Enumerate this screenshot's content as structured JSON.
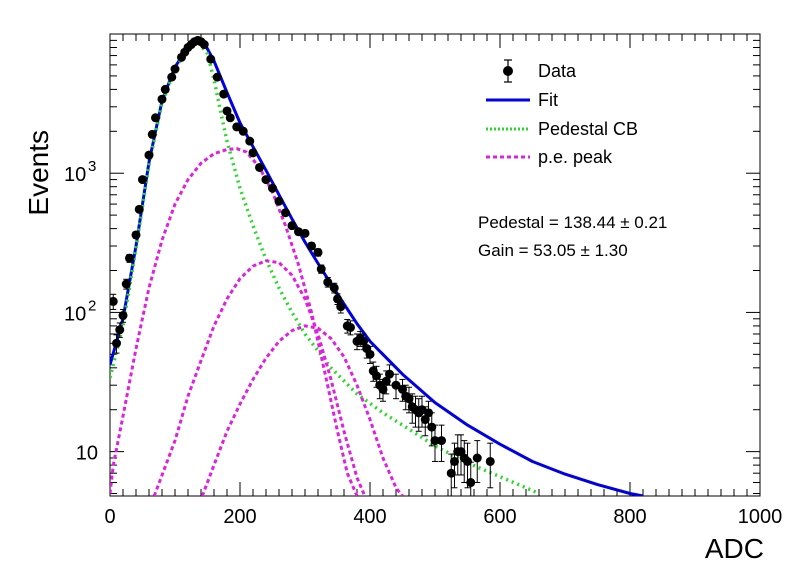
{
  "chart_data": {
    "type": "line",
    "xlabel": "ADC",
    "ylabel": "Events",
    "xlim": [
      0,
      1000
    ],
    "ylim": [
      4.8,
      10000
    ],
    "yscale": "log",
    "grid": false,
    "legend_position": "top-right",
    "x_ticks": [
      {
        "value": 0,
        "label": "0"
      },
      {
        "value": 200,
        "label": "200"
      },
      {
        "value": 400,
        "label": "400"
      },
      {
        "value": 600,
        "label": "600"
      },
      {
        "value": 800,
        "label": "800"
      },
      {
        "value": 1000,
        "label": "1000"
      }
    ],
    "y_ticks": [
      {
        "value": 10,
        "label": "10"
      },
      {
        "value": 100,
        "label": "10",
        "exponent": "2"
      },
      {
        "value": 1000,
        "label": "10",
        "exponent": "3"
      }
    ],
    "legend": [
      {
        "key": "data",
        "label": "Data"
      },
      {
        "key": "fit",
        "label": "Fit"
      },
      {
        "key": "ped",
        "label": "Pedestal CB"
      },
      {
        "key": "pe",
        "label": "p.e. peak"
      }
    ],
    "annotations": [
      "Pedestal = 138.44 ± 0.21",
      "Gain = 53.05 ± 1.30"
    ],
    "colors": {
      "data": "#000000",
      "fit": "#0000e6",
      "ped": "#22dd22",
      "pe": "#e020e0"
    },
    "series": [
      {
        "name": "Data",
        "kind": "points_with_errors",
        "points": [
          {
            "x": 5,
            "y": 120,
            "e": 15
          },
          {
            "x": 10,
            "y": 60,
            "e": 9
          },
          {
            "x": 15,
            "y": 75,
            "e": 9
          },
          {
            "x": 20,
            "y": 95,
            "e": 10
          },
          {
            "x": 25,
            "y": 160,
            "e": 13
          },
          {
            "x": 30,
            "y": 245,
            "e": 16
          },
          {
            "x": 40,
            "y": 360,
            "e": 19
          },
          {
            "x": 45,
            "y": 550,
            "e": 23
          },
          {
            "x": 50,
            "y": 900,
            "e": 30
          },
          {
            "x": 60,
            "y": 1350,
            "e": 37
          },
          {
            "x": 65,
            "y": 1900,
            "e": 44
          },
          {
            "x": 70,
            "y": 2500,
            "e": 50
          },
          {
            "x": 80,
            "y": 3400,
            "e": 58
          },
          {
            "x": 85,
            "y": 4000,
            "e": 63
          },
          {
            "x": 95,
            "y": 4900,
            "e": 70
          },
          {
            "x": 100,
            "y": 5600,
            "e": 75
          },
          {
            "x": 110,
            "y": 6800,
            "e": 82
          },
          {
            "x": 115,
            "y": 7400,
            "e": 86
          },
          {
            "x": 120,
            "y": 8000,
            "e": 89
          },
          {
            "x": 125,
            "y": 8400,
            "e": 92
          },
          {
            "x": 130,
            "y": 8800,
            "e": 94
          },
          {
            "x": 135,
            "y": 9000,
            "e": 95
          },
          {
            "x": 140,
            "y": 8800,
            "e": 94
          },
          {
            "x": 145,
            "y": 8400,
            "e": 92
          },
          {
            "x": 155,
            "y": 6600,
            "e": 81
          },
          {
            "x": 165,
            "y": 4900,
            "e": 70
          },
          {
            "x": 175,
            "y": 3700,
            "e": 61
          },
          {
            "x": 180,
            "y": 2800,
            "e": 53
          },
          {
            "x": 185,
            "y": 2500,
            "e": 50
          },
          {
            "x": 195,
            "y": 2150,
            "e": 46
          },
          {
            "x": 205,
            "y": 2000,
            "e": 45
          },
          {
            "x": 215,
            "y": 1700,
            "e": 41
          },
          {
            "x": 220,
            "y": 1400,
            "e": 37
          },
          {
            "x": 230,
            "y": 1100,
            "e": 33
          },
          {
            "x": 240,
            "y": 900,
            "e": 30
          },
          {
            "x": 250,
            "y": 780,
            "e": 28
          },
          {
            "x": 260,
            "y": 630,
            "e": 25
          },
          {
            "x": 270,
            "y": 520,
            "e": 23
          },
          {
            "x": 280,
            "y": 420,
            "e": 20
          },
          {
            "x": 290,
            "y": 380,
            "e": 19
          },
          {
            "x": 300,
            "y": 370,
            "e": 19
          },
          {
            "x": 310,
            "y": 300,
            "e": 17
          },
          {
            "x": 320,
            "y": 270,
            "e": 16
          },
          {
            "x": 325,
            "y": 205,
            "e": 14
          },
          {
            "x": 335,
            "y": 165,
            "e": 13
          },
          {
            "x": 345,
            "y": 150,
            "e": 12
          },
          {
            "x": 350,
            "y": 125,
            "e": 11
          },
          {
            "x": 355,
            "y": 110,
            "e": 11
          },
          {
            "x": 365,
            "y": 80,
            "e": 9
          },
          {
            "x": 370,
            "y": 78,
            "e": 9
          },
          {
            "x": 380,
            "y": 62,
            "e": 8
          },
          {
            "x": 385,
            "y": 65,
            "e": 8
          },
          {
            "x": 390,
            "y": 62,
            "e": 8
          },
          {
            "x": 395,
            "y": 55,
            "e": 8
          },
          {
            "x": 400,
            "y": 50,
            "e": 7
          },
          {
            "x": 405,
            "y": 38,
            "e": 6
          },
          {
            "x": 410,
            "y": 35,
            "e": 6
          },
          {
            "x": 415,
            "y": 30,
            "e": 6
          },
          {
            "x": 420,
            "y": 28,
            "e": 5
          },
          {
            "x": 425,
            "y": 32,
            "e": 6
          },
          {
            "x": 430,
            "y": 36,
            "e": 6
          },
          {
            "x": 440,
            "y": 30,
            "e": 6
          },
          {
            "x": 450,
            "y": 28,
            "e": 5
          },
          {
            "x": 455,
            "y": 25,
            "e": 5
          },
          {
            "x": 460,
            "y": 24,
            "e": 5
          },
          {
            "x": 465,
            "y": 21,
            "e": 5
          },
          {
            "x": 470,
            "y": 20,
            "e": 5
          },
          {
            "x": 475,
            "y": 19,
            "e": 5
          },
          {
            "x": 480,
            "y": 20,
            "e": 5
          },
          {
            "x": 485,
            "y": 17,
            "e": 4
          },
          {
            "x": 490,
            "y": 19,
            "e": 4
          },
          {
            "x": 495,
            "y": 15,
            "e": 4
          },
          {
            "x": 500,
            "y": 12,
            "e": 3.5
          },
          {
            "x": 510,
            "y": 12,
            "e": 3.5
          },
          {
            "x": 525,
            "y": 7,
            "e": 2.6
          },
          {
            "x": 530,
            "y": 8.5,
            "e": 3
          },
          {
            "x": 535,
            "y": 10,
            "e": 3.2
          },
          {
            "x": 540,
            "y": 10,
            "e": 3.2
          },
          {
            "x": 545,
            "y": 9,
            "e": 3
          },
          {
            "x": 550,
            "y": 8.5,
            "e": 3
          },
          {
            "x": 555,
            "y": 6,
            "e": 2.4
          },
          {
            "x": 565,
            "y": 9,
            "e": 3
          },
          {
            "x": 585,
            "y": 8.5,
            "e": 3
          }
        ]
      },
      {
        "name": "Fit",
        "kind": "line",
        "points": [
          [
            0,
            42
          ],
          [
            20,
            90
          ],
          [
            40,
            300
          ],
          [
            60,
            1200
          ],
          [
            80,
            3300
          ],
          [
            100,
            5800
          ],
          [
            120,
            8000
          ],
          [
            135,
            9000
          ],
          [
            145,
            8600
          ],
          [
            160,
            6400
          ],
          [
            180,
            3800
          ],
          [
            200,
            2300
          ],
          [
            220,
            1550
          ],
          [
            240,
            1050
          ],
          [
            260,
            700
          ],
          [
            280,
            470
          ],
          [
            300,
            320
          ],
          [
            320,
            225
          ],
          [
            340,
            160
          ],
          [
            360,
            115
          ],
          [
            380,
            83
          ],
          [
            400,
            62
          ],
          [
            450,
            36
          ],
          [
            500,
            22.5
          ],
          [
            550,
            15.5
          ],
          [
            600,
            11.3
          ],
          [
            650,
            8.5
          ],
          [
            700,
            6.9
          ],
          [
            750,
            5.8
          ],
          [
            800,
            5.0
          ],
          [
            820,
            4.8
          ]
        ]
      },
      {
        "name": "Pedestal CB",
        "kind": "dotted_line",
        "points": [
          [
            0,
            34
          ],
          [
            20,
            80
          ],
          [
            40,
            290
          ],
          [
            60,
            1150
          ],
          [
            80,
            3200
          ],
          [
            100,
            5600
          ],
          [
            120,
            7800
          ],
          [
            135,
            8800
          ],
          [
            150,
            7200
          ],
          [
            160,
            4700
          ],
          [
            170,
            2800
          ],
          [
            180,
            1700
          ],
          [
            200,
            780
          ],
          [
            220,
            420
          ],
          [
            240,
            240
          ],
          [
            260,
            150
          ],
          [
            280,
            100
          ],
          [
            300,
            70
          ],
          [
            340,
            40
          ],
          [
            380,
            26
          ],
          [
            420,
            19
          ],
          [
            460,
            14.5
          ],
          [
            500,
            11
          ],
          [
            550,
            8.3
          ],
          [
            600,
            6.6
          ],
          [
            640,
            5.5
          ],
          [
            660,
            5.0
          ]
        ]
      },
      {
        "name": "p.e. peak 1",
        "kind": "dashed_line",
        "points": [
          [
            0,
            5.0
          ],
          [
            5,
            8
          ],
          [
            20,
            18
          ],
          [
            40,
            55
          ],
          [
            60,
            150
          ],
          [
            80,
            330
          ],
          [
            100,
            600
          ],
          [
            120,
            900
          ],
          [
            140,
            1180
          ],
          [
            160,
            1380
          ],
          [
            180,
            1480
          ],
          [
            195,
            1500
          ],
          [
            210,
            1420
          ],
          [
            230,
            1100
          ],
          [
            250,
            730
          ],
          [
            270,
            420
          ],
          [
            290,
            220
          ],
          [
            310,
            100
          ],
          [
            330,
            38
          ],
          [
            350,
            14
          ],
          [
            365,
            7
          ],
          [
            380,
            4.8
          ]
        ]
      },
      {
        "name": "p.e. peak 2",
        "kind": "dashed_line",
        "points": [
          [
            68,
            4.8
          ],
          [
            100,
            12
          ],
          [
            120,
            25
          ],
          [
            140,
            45
          ],
          [
            160,
            80
          ],
          [
            180,
            125
          ],
          [
            200,
            175
          ],
          [
            220,
            215
          ],
          [
            240,
            235
          ],
          [
            260,
            228
          ],
          [
            280,
            185
          ],
          [
            300,
            125
          ],
          [
            320,
            70
          ],
          [
            340,
            33
          ],
          [
            360,
            14
          ],
          [
            380,
            6.5
          ],
          [
            392,
            4.8
          ]
        ]
      },
      {
        "name": "p.e. peak 3",
        "kind": "dashed_line",
        "points": [
          [
            142,
            4.8
          ],
          [
            160,
            8
          ],
          [
            180,
            14
          ],
          [
            200,
            22
          ],
          [
            220,
            33
          ],
          [
            240,
            47
          ],
          [
            260,
            62
          ],
          [
            280,
            74
          ],
          [
            300,
            80
          ],
          [
            320,
            77
          ],
          [
            340,
            65
          ],
          [
            360,
            48
          ],
          [
            380,
            30
          ],
          [
            400,
            17
          ],
          [
            420,
            9
          ],
          [
            440,
            5.5
          ],
          [
            450,
            4.8
          ]
        ]
      }
    ]
  }
}
